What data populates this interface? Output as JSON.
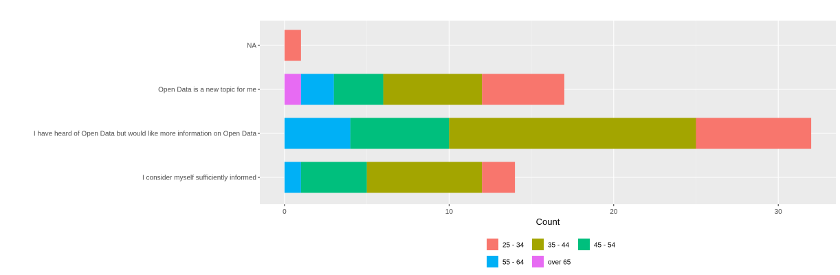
{
  "chart_data": {
    "type": "bar",
    "orientation": "horizontal",
    "stacked": true,
    "title": "",
    "xlabel": "Count",
    "ylabel": "",
    "xlim": [
      -1.5,
      33.5
    ],
    "xticks": [
      0,
      10,
      20,
      30
    ],
    "grid": true,
    "legend_position": "bottom",
    "categories": [
      "NA",
      "Open Data is a new topic for me",
      "I have heard of Open Data but would like more information on Open Data",
      "I consider myself sufficiently informed"
    ],
    "series": [
      {
        "name": "over 65",
        "color": "#E76BF3",
        "values": [
          0,
          1,
          0,
          0
        ]
      },
      {
        "name": "55 - 64",
        "color": "#00B0F6",
        "values": [
          0,
          2,
          4,
          1
        ]
      },
      {
        "name": "45 - 54",
        "color": "#00BF7D",
        "values": [
          0,
          3,
          6,
          4
        ]
      },
      {
        "name": "35 - 44",
        "color": "#A3A500",
        "values": [
          0,
          6,
          15,
          7
        ]
      },
      {
        "name": "25 - 34",
        "color": "#F8766D",
        "values": [
          1,
          5,
          7,
          2
        ]
      }
    ],
    "legend_order": [
      "25 - 34",
      "35 - 44",
      "45 - 54",
      "55 - 64",
      "over 65"
    ],
    "colors": {
      "panel_background": "#EBEBEB",
      "grid_major": "#FFFFFF",
      "grid_minor": "#F2F2F2"
    }
  }
}
